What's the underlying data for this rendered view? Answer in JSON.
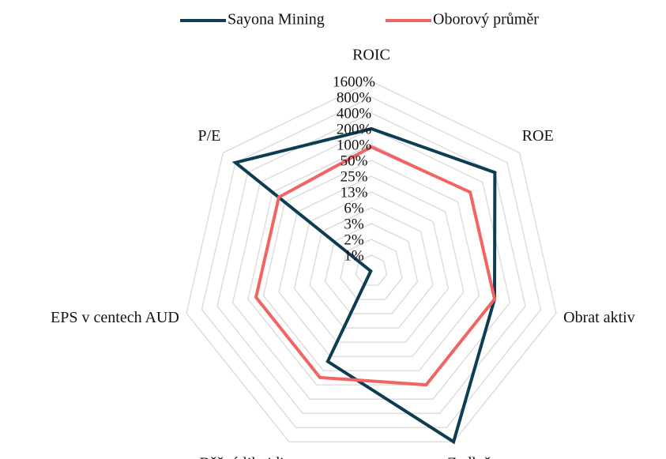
{
  "chart_data": {
    "type": "radar",
    "categories": [
      "ROIC",
      "ROE",
      "Obrat aktiv",
      "Zadluženost",
      "Běžná likvidita",
      "EPS v centech AUD",
      "P/E"
    ],
    "series": [
      {
        "name": "Sayona Mining",
        "color": "#0e3d52",
        "values": [
          200,
          400,
          100,
          1600,
          32,
          0.4,
          800
        ]
      },
      {
        "name": "Oborový průměr",
        "color": "#f26464",
        "values": [
          90,
          100,
          100,
          100,
          70,
          70,
          70
        ]
      }
    ],
    "log_scale": true,
    "ylim": [
      0.390625,
      1600
    ],
    "yticks": [
      {
        "value": 0.78125,
        "label": "1%"
      },
      {
        "value": 1.5625,
        "label": "2%"
      },
      {
        "value": 3.125,
        "label": "3%"
      },
      {
        "value": 6.25,
        "label": "6%"
      },
      {
        "value": 12.5,
        "label": "13%"
      },
      {
        "value": 25,
        "label": "25%"
      },
      {
        "value": 50,
        "label": "50%"
      },
      {
        "value": 100,
        "label": "100%"
      },
      {
        "value": 200,
        "label": "200%"
      },
      {
        "value": 400,
        "label": "400%"
      },
      {
        "value": 800,
        "label": "800%"
      },
      {
        "value": 1600,
        "label": "1600%"
      }
    ],
    "grid": true,
    "legend": "top"
  }
}
